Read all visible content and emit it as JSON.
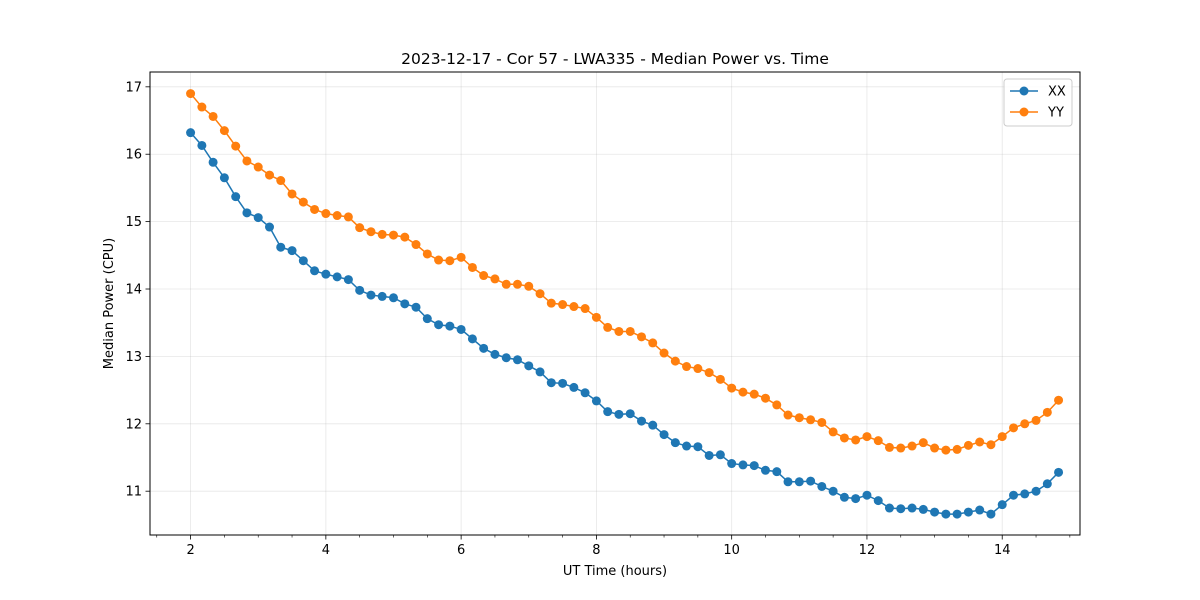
{
  "chart_data": {
    "type": "line",
    "title": "2023-12-17 - Cor 57 - LWA335 - Median Power vs. Time",
    "xlabel": "UT Time (hours)",
    "ylabel": "Median Power (CPU)",
    "xlim": [
      1.4,
      15.15
    ],
    "ylim": [
      10.35,
      17.22
    ],
    "xticks": [
      2,
      4,
      6,
      8,
      10,
      12,
      14
    ],
    "xtick_labels": [
      "2",
      "4",
      "6",
      "8",
      "10",
      "12",
      "14"
    ],
    "xminor": [
      1.5,
      2.5,
      3,
      3.5,
      4.5,
      5,
      5.5,
      6.5,
      7,
      7.5,
      8.5,
      9,
      9.5,
      10.5,
      11,
      11.5,
      12.5,
      13,
      13.5,
      14.5,
      15
    ],
    "yticks": [
      11,
      12,
      13,
      14,
      15,
      16,
      17
    ],
    "ytick_labels": [
      "11",
      "12",
      "13",
      "14",
      "15",
      "16",
      "17"
    ],
    "grid": true,
    "legend_position": "top-right",
    "x": [
      2.0,
      2.167,
      2.333,
      2.5,
      2.667,
      2.833,
      3.0,
      3.167,
      3.333,
      3.5,
      3.667,
      3.833,
      4.0,
      4.167,
      4.333,
      4.5,
      4.667,
      4.833,
      5.0,
      5.167,
      5.333,
      5.5,
      5.667,
      5.833,
      6.0,
      6.167,
      6.333,
      6.5,
      6.667,
      6.833,
      7.0,
      7.167,
      7.333,
      7.5,
      7.667,
      7.833,
      8.0,
      8.167,
      8.333,
      8.5,
      8.667,
      8.833,
      9.0,
      9.167,
      9.333,
      9.5,
      9.667,
      9.833,
      10.0,
      10.167,
      10.333,
      10.5,
      10.667,
      10.833,
      11.0,
      11.167,
      11.333,
      11.5,
      11.667,
      11.833,
      12.0,
      12.167,
      12.333,
      12.5,
      12.667,
      12.833,
      13.0,
      13.167,
      13.333,
      13.5,
      13.667,
      13.833,
      14.0,
      14.167,
      14.333,
      14.5,
      14.667,
      14.833
    ],
    "series": [
      {
        "name": "XX",
        "color": "#1f77b4",
        "values": [
          16.32,
          16.13,
          15.88,
          15.65,
          15.37,
          15.13,
          15.06,
          14.92,
          14.62,
          14.57,
          14.42,
          14.27,
          14.22,
          14.18,
          14.14,
          13.98,
          13.91,
          13.89,
          13.87,
          13.78,
          13.73,
          13.56,
          13.47,
          13.45,
          13.4,
          13.26,
          13.12,
          13.03,
          12.98,
          12.95,
          12.86,
          12.77,
          12.61,
          12.6,
          12.54,
          12.46,
          12.34,
          12.18,
          12.14,
          12.15,
          12.04,
          11.98,
          11.84,
          11.72,
          11.67,
          11.66,
          11.53,
          11.54,
          11.41,
          11.39,
          11.38,
          11.31,
          11.29,
          11.14,
          11.14,
          11.15,
          11.07,
          11.0,
          10.91,
          10.89,
          10.94,
          10.86,
          10.75,
          10.74,
          10.75,
          10.73,
          10.69,
          10.66,
          10.66,
          10.69,
          10.72,
          10.66,
          10.8,
          10.94,
          10.96,
          11.0,
          11.11,
          11.28
        ]
      },
      {
        "name": "YY",
        "color": "#ff7f0e",
        "values": [
          16.9,
          16.7,
          16.56,
          16.35,
          16.12,
          15.9,
          15.81,
          15.69,
          15.61,
          15.41,
          15.29,
          15.18,
          15.12,
          15.09,
          15.07,
          14.91,
          14.85,
          14.81,
          14.8,
          14.77,
          14.66,
          14.52,
          14.43,
          14.42,
          14.47,
          14.32,
          14.2,
          14.15,
          14.07,
          14.07,
          14.04,
          13.93,
          13.79,
          13.77,
          13.74,
          13.71,
          13.58,
          13.43,
          13.37,
          13.37,
          13.29,
          13.2,
          13.05,
          12.93,
          12.85,
          12.82,
          12.76,
          12.66,
          12.53,
          12.47,
          12.44,
          12.38,
          12.28,
          12.13,
          12.09,
          12.06,
          12.02,
          11.88,
          11.79,
          11.76,
          11.81,
          11.75,
          11.65,
          11.64,
          11.67,
          11.72,
          11.64,
          11.61,
          11.62,
          11.68,
          11.73,
          11.69,
          11.81,
          11.94,
          12.0,
          12.05,
          12.17,
          12.35
        ]
      }
    ]
  }
}
